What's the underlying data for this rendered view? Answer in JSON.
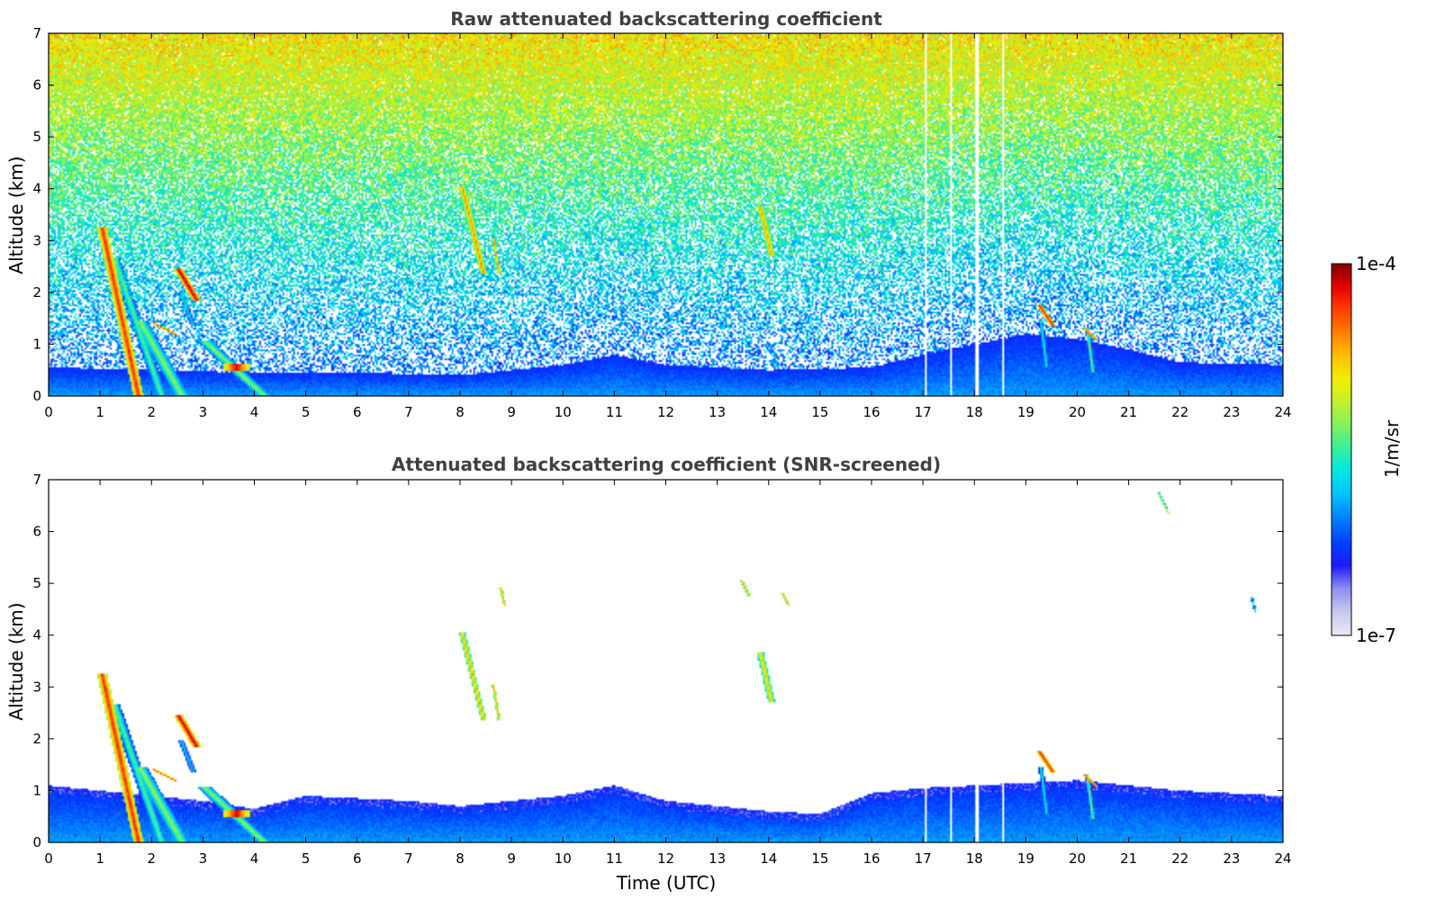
{
  "colors": {
    "colormap": [
      "#e9e9f7",
      "#c8c8f0",
      "#8f8fee",
      "#1a1aff",
      "#0040ff",
      "#007fff",
      "#00bfff",
      "#00e5e5",
      "#30f0a0",
      "#80f060",
      "#c0f030",
      "#f0f000",
      "#ffc000",
      "#ff8000",
      "#ff4000",
      "#e80000",
      "#800000"
    ],
    "axes_frame": "#000000",
    "title_text": "#404040"
  },
  "chart_data": [
    {
      "type": "heatmap",
      "title": "Raw attenuated backscattering coefficient",
      "xlabel": "",
      "ylabel": "Altitude (km)",
      "xlim": [
        0,
        24
      ],
      "ylim": [
        0,
        7
      ],
      "x_ticks": [
        "0",
        "1",
        "2",
        "3",
        "4",
        "5",
        "6",
        "7",
        "8",
        "9",
        "10",
        "11",
        "12",
        "13",
        "14",
        "15",
        "16",
        "17",
        "18",
        "19",
        "20",
        "21",
        "22",
        "23",
        "24"
      ],
      "y_ticks": [
        "0",
        "1",
        "2",
        "3",
        "4",
        "5",
        "6",
        "7"
      ],
      "noise_background": true,
      "boundary_layer": [
        {
          "t": 0,
          "top": 0.55
        },
        {
          "t": 2,
          "top": 0.5
        },
        {
          "t": 4,
          "top": 0.45
        },
        {
          "t": 6,
          "top": 0.45
        },
        {
          "t": 8,
          "top": 0.4
        },
        {
          "t": 10,
          "top": 0.6
        },
        {
          "t": 11,
          "top": 0.8
        },
        {
          "t": 12,
          "top": 0.6
        },
        {
          "t": 14,
          "top": 0.5
        },
        {
          "t": 16,
          "top": 0.55
        },
        {
          "t": 17,
          "top": 0.8
        },
        {
          "t": 18,
          "top": 1.0
        },
        {
          "t": 19,
          "top": 1.2
        },
        {
          "t": 20,
          "top": 1.1
        },
        {
          "t": 21,
          "top": 0.9
        },
        {
          "t": 22,
          "top": 0.65
        },
        {
          "t": 24,
          "top": 0.6
        }
      ],
      "features": [
        {
          "t0": 1.05,
          "t1": 1.75,
          "z0": 3.2,
          "z1": 0.0,
          "width": 0.2,
          "value": 0.92
        },
        {
          "t0": 1.3,
          "t1": 2.2,
          "z0": 2.6,
          "z1": 0.0,
          "width": 0.22,
          "value": 0.55
        },
        {
          "t0": 1.8,
          "t1": 2.6,
          "z0": 1.4,
          "z1": 0.0,
          "width": 0.3,
          "value": 0.6
        },
        {
          "t0": 2.55,
          "t1": 2.85,
          "z0": 2.4,
          "z1": 1.9,
          "width": 0.18,
          "value": 0.98
        },
        {
          "t0": 2.6,
          "t1": 2.8,
          "z0": 1.9,
          "z1": 1.4,
          "width": 0.12,
          "value": 0.45
        },
        {
          "t0": 2.15,
          "t1": 2.35,
          "z0": 1.35,
          "z1": 1.25,
          "width": 0.12,
          "value": 0.9
        },
        {
          "t0": 3.1,
          "t1": 4.2,
          "z0": 1.0,
          "z1": 0.0,
          "width": 0.3,
          "value": 0.6
        },
        {
          "t0": 3.4,
          "t1": 3.9,
          "z0": 0.55,
          "z1": 0.55,
          "width": 0.08,
          "value": 0.95
        },
        {
          "t0": 8.05,
          "t1": 8.45,
          "z0": 4.0,
          "z1": 2.4,
          "width": 0.15,
          "value": 0.82
        },
        {
          "t0": 8.65,
          "t1": 8.75,
          "z0": 3.0,
          "z1": 2.4,
          "width": 0.06,
          "value": 0.85
        },
        {
          "t0": 13.85,
          "t1": 14.05,
          "z0": 3.6,
          "z1": 2.75,
          "width": 0.15,
          "value": 0.8
        },
        {
          "t0": 19.3,
          "t1": 19.5,
          "z0": 1.7,
          "z1": 1.4,
          "width": 0.12,
          "value": 0.95
        },
        {
          "t0": 19.3,
          "t1": 19.4,
          "z0": 1.4,
          "z1": 0.6,
          "width": 0.1,
          "value": 0.5
        },
        {
          "t0": 20.2,
          "t1": 20.3,
          "z0": 1.25,
          "z1": 0.5,
          "width": 0.08,
          "value": 0.6
        },
        {
          "t0": 20.2,
          "t1": 20.3,
          "z0": 1.25,
          "z1": 1.15,
          "width": 0.08,
          "value": 0.95
        }
      ],
      "data_gaps": [
        17.05,
        17.55,
        18.05,
        18.55
      ]
    },
    {
      "type": "heatmap",
      "title": "Attenuated backscattering coefficient (SNR-screened)",
      "xlabel": "Time (UTC)",
      "ylabel": "Altitude (km)",
      "xlim": [
        0,
        24
      ],
      "ylim": [
        0,
        7
      ],
      "x_ticks": [
        "0",
        "1",
        "2",
        "3",
        "4",
        "5",
        "6",
        "7",
        "8",
        "9",
        "10",
        "11",
        "12",
        "13",
        "14",
        "15",
        "16",
        "17",
        "18",
        "19",
        "20",
        "21",
        "22",
        "23",
        "24"
      ],
      "y_ticks": [
        "0",
        "1",
        "2",
        "3",
        "4",
        "5",
        "6",
        "7"
      ],
      "noise_background": false,
      "boundary_layer": [
        {
          "t": 0,
          "top": 1.1
        },
        {
          "t": 1,
          "top": 1.0
        },
        {
          "t": 2,
          "top": 0.9
        },
        {
          "t": 3,
          "top": 0.8
        },
        {
          "t": 4,
          "top": 0.65
        },
        {
          "t": 5,
          "top": 0.9
        },
        {
          "t": 6,
          "top": 0.85
        },
        {
          "t": 7,
          "top": 0.8
        },
        {
          "t": 8,
          "top": 0.7
        },
        {
          "t": 9,
          "top": 0.8
        },
        {
          "t": 10,
          "top": 0.9
        },
        {
          "t": 11,
          "top": 1.1
        },
        {
          "t": 12,
          "top": 0.8
        },
        {
          "t": 13,
          "top": 0.7
        },
        {
          "t": 14,
          "top": 0.6
        },
        {
          "t": 15,
          "top": 0.55
        },
        {
          "t": 16,
          "top": 0.95
        },
        {
          "t": 17,
          "top": 1.05
        },
        {
          "t": 18,
          "top": 1.1
        },
        {
          "t": 19,
          "top": 1.15
        },
        {
          "t": 20,
          "top": 1.2
        },
        {
          "t": 21,
          "top": 1.1
        },
        {
          "t": 22,
          "top": 1.0
        },
        {
          "t": 23,
          "top": 0.95
        },
        {
          "t": 24,
          "top": 0.9
        }
      ],
      "features": [
        {
          "t0": 1.05,
          "t1": 1.75,
          "z0": 3.2,
          "z1": 0.0,
          "width": 0.2,
          "value": 0.92
        },
        {
          "t0": 1.3,
          "t1": 2.2,
          "z0": 2.6,
          "z1": 0.0,
          "width": 0.22,
          "value": 0.55
        },
        {
          "t0": 1.8,
          "t1": 2.6,
          "z0": 1.4,
          "z1": 0.0,
          "width": 0.3,
          "value": 0.6
        },
        {
          "t0": 2.55,
          "t1": 2.85,
          "z0": 2.4,
          "z1": 1.9,
          "width": 0.18,
          "value": 0.98
        },
        {
          "t0": 2.6,
          "t1": 2.8,
          "z0": 1.9,
          "z1": 1.4,
          "width": 0.12,
          "value": 0.45
        },
        {
          "t0": 2.15,
          "t1": 2.35,
          "z0": 1.35,
          "z1": 1.25,
          "width": 0.12,
          "value": 0.9
        },
        {
          "t0": 3.1,
          "t1": 4.2,
          "z0": 1.0,
          "z1": 0.0,
          "width": 0.3,
          "value": 0.6
        },
        {
          "t0": 3.4,
          "t1": 3.9,
          "z0": 0.55,
          "z1": 0.55,
          "width": 0.08,
          "value": 0.95
        },
        {
          "t0": 8.05,
          "t1": 8.45,
          "z0": 4.0,
          "z1": 2.4,
          "width": 0.12,
          "value": 0.78
        },
        {
          "t0": 8.65,
          "t1": 8.75,
          "z0": 3.0,
          "z1": 2.4,
          "width": 0.06,
          "value": 0.8
        },
        {
          "t0": 8.8,
          "t1": 8.85,
          "z0": 4.85,
          "z1": 4.65,
          "width": 0.06,
          "value": 0.82
        },
        {
          "t0": 13.5,
          "t1": 13.6,
          "z0": 5.0,
          "z1": 4.8,
          "width": 0.06,
          "value": 0.82
        },
        {
          "t0": 13.85,
          "t1": 14.05,
          "z0": 3.6,
          "z1": 2.75,
          "width": 0.14,
          "value": 0.75
        },
        {
          "t0": 14.3,
          "t1": 14.35,
          "z0": 4.75,
          "z1": 4.65,
          "width": 0.06,
          "value": 0.8
        },
        {
          "t0": 21.6,
          "t1": 21.75,
          "z0": 6.7,
          "z1": 6.4,
          "width": 0.05,
          "value": 0.7
        },
        {
          "t0": 23.4,
          "t1": 23.45,
          "z0": 4.7,
          "z1": 4.5,
          "width": 0.05,
          "value": 0.55
        },
        {
          "t0": 19.3,
          "t1": 19.5,
          "z0": 1.7,
          "z1": 1.4,
          "width": 0.12,
          "value": 0.95
        },
        {
          "t0": 19.3,
          "t1": 19.4,
          "z0": 1.4,
          "z1": 0.6,
          "width": 0.1,
          "value": 0.5
        },
        {
          "t0": 20.2,
          "t1": 20.3,
          "z0": 1.25,
          "z1": 0.5,
          "width": 0.08,
          "value": 0.6
        },
        {
          "t0": 20.2,
          "t1": 20.3,
          "z0": 1.25,
          "z1": 1.15,
          "width": 0.08,
          "value": 0.95
        }
      ],
      "data_gaps": [
        17.05,
        17.55,
        18.05,
        18.55
      ]
    }
  ],
  "colorbar": {
    "max_label": "1e-4",
    "min_label": "1e-7",
    "unit_label": "1/m/sr",
    "scale": "log"
  }
}
